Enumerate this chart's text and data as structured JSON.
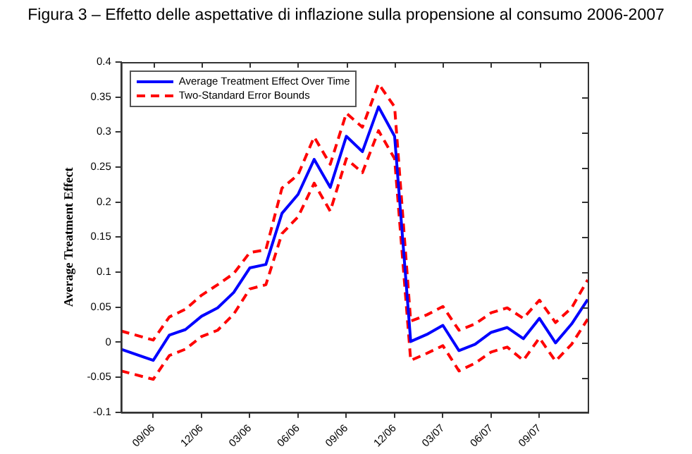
{
  "chart_data": {
    "type": "line",
    "title": "Figura 3 – Effetto delle aspettative di inflazione sulla propensione al consumo 2006-2007",
    "ylabel": "Average Treatment Effect",
    "categories": [
      null,
      null,
      "09/06",
      null,
      null,
      "12/06",
      null,
      null,
      "03/06",
      null,
      null,
      "06/06",
      null,
      null,
      "09/06",
      null,
      null,
      "12/06",
      null,
      null,
      "03/07",
      null,
      null,
      "06/07",
      null,
      null,
      "09/07",
      null,
      null,
      null
    ],
    "ylim": [
      -0.1,
      0.4
    ],
    "yticks": [
      -0.1,
      -0.05,
      0,
      0.05,
      0.1,
      0.15,
      0.2,
      0.25,
      0.3,
      0.35,
      0.4
    ],
    "grid": false,
    "legend": "top left",
    "marker": "none",
    "series": [
      {
        "name": "Average Treatment Effect Over Time",
        "color": "#0000ff",
        "line_style": "solid",
        "values": [
          -0.01,
          null,
          -0.026,
          0.01,
          0.018,
          0.037,
          0.049,
          0.071,
          0.106,
          0.111,
          0.184,
          0.211,
          0.261,
          0.221,
          0.294,
          0.272,
          0.336,
          0.294,
          0.001,
          0.011,
          0.024,
          -0.012,
          -0.003,
          0.014,
          0.021,
          0.005,
          0.034,
          -0.001,
          0.026,
          0.061
        ]
      },
      {
        "name": "Two-Standard Error Bounds",
        "color": "#ff0000",
        "line_style": "dashed",
        "values": [
          0.016,
          null,
          0.003,
          0.036,
          0.047,
          0.067,
          0.082,
          0.098,
          0.128,
          0.132,
          0.22,
          0.239,
          0.293,
          0.254,
          0.327,
          0.307,
          0.369,
          0.336,
          0.03,
          0.039,
          0.051,
          0.017,
          0.026,
          0.042,
          0.049,
          0.034,
          0.06,
          0.028,
          0.049,
          0.089
        ]
      },
      {
        "color": "#ff0000",
        "line_style": "dashed",
        "values": [
          -0.041,
          null,
          -0.053,
          -0.019,
          -0.01,
          0.008,
          0.017,
          0.04,
          0.076,
          0.082,
          0.155,
          0.179,
          0.227,
          0.187,
          0.262,
          0.242,
          0.302,
          0.262,
          -0.026,
          -0.016,
          -0.005,
          -0.041,
          -0.03,
          -0.014,
          -0.007,
          -0.026,
          0.006,
          -0.027,
          -0.003,
          0.033
        ]
      }
    ]
  }
}
